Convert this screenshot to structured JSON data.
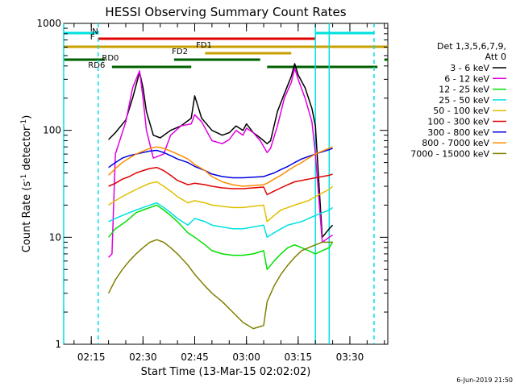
{
  "chart_data": {
    "type": "line",
    "title": "HESSI Observing Summary Count Rates",
    "xlabel": "Start Time (13-Mar-15 02:02:02)",
    "ylabel_main": "Count Rate (s",
    "ylabel_sup1": "-1",
    "ylabel_mid": " detector",
    "ylabel_sup2": "-1",
    "ylabel_end": ")",
    "yscale": "log",
    "ylim": [
      1,
      1000
    ],
    "xlim": [
      "02:07",
      "03:41"
    ],
    "x_ticks": [
      "02:15",
      "02:30",
      "02:45",
      "03:00",
      "03:15",
      "03:30"
    ],
    "y_ticks": [
      "1",
      "10",
      "100",
      "1000"
    ],
    "grid": false,
    "legend_header": [
      "Det 1,3,5,6,7,9,",
      "Att 0"
    ],
    "legend_placement": "right",
    "series": [
      {
        "name": "3 - 6 keV",
        "color": "#000000",
        "x": [
          "02:20",
          "02:22",
          "02:25",
          "02:27",
          "02:29",
          "02:30",
          "02:31",
          "02:33",
          "02:35",
          "02:38",
          "02:41",
          "02:44",
          "02:45",
          "02:47",
          "02:50",
          "02:53",
          "02:55",
          "02:57",
          "02:59",
          "03:00",
          "03:02",
          "03:04",
          "03:06",
          "03:07",
          "03:09",
          "03:11",
          "03:13",
          "03:14",
          "03:15",
          "03:17",
          "03:19",
          "03:20",
          "03:22",
          "03:24",
          "03:25"
        ],
        "y": [
          82,
          95,
          125,
          200,
          350,
          250,
          150,
          90,
          85,
          100,
          110,
          130,
          210,
          130,
          100,
          90,
          95,
          110,
          100,
          115,
          95,
          85,
          75,
          80,
          150,
          220,
          320,
          420,
          330,
          250,
          160,
          110,
          10,
          12,
          13
        ]
      },
      {
        "name": "6 - 12 keV",
        "color": "#e000e0",
        "x": [
          "02:20",
          "02:21",
          "02:22",
          "02:25",
          "02:27",
          "02:29",
          "02:30",
          "02:31",
          "02:33",
          "02:36",
          "02:38",
          "02:41",
          "02:44",
          "02:45",
          "02:47",
          "02:50",
          "02:53",
          "02:55",
          "02:57",
          "02:59",
          "03:00",
          "03:02",
          "03:04",
          "03:06",
          "03:07",
          "03:09",
          "03:11",
          "03:13",
          "03:14",
          "03:15",
          "03:17",
          "03:19",
          "03:20",
          "03:22",
          "03:24",
          "03:25"
        ],
        "y": [
          6.5,
          7,
          60,
          120,
          250,
          360,
          200,
          100,
          55,
          60,
          90,
          110,
          115,
          140,
          120,
          80,
          75,
          82,
          100,
          90,
          105,
          95,
          80,
          62,
          68,
          110,
          200,
          280,
          380,
          300,
          200,
          120,
          60,
          9,
          10,
          10.5
        ]
      },
      {
        "name": "12 - 25 keV",
        "color": "#00e000",
        "x": [
          "02:20",
          "02:22",
          "02:25",
          "02:28",
          "02:30",
          "02:32",
          "02:34",
          "02:36",
          "02:38",
          "02:40",
          "02:43",
          "02:45",
          "02:48",
          "02:50",
          "02:53",
          "02:56",
          "02:59",
          "03:02",
          "03:05",
          "03:06",
          "03:08",
          "03:10",
          "03:12",
          "03:14",
          "03:16",
          "03:18",
          "03:20",
          "03:22",
          "03:24",
          "03:25"
        ],
        "y": [
          10,
          12,
          14,
          17,
          18,
          19,
          20,
          18,
          16,
          14,
          11,
          10,
          8.5,
          7.5,
          7,
          6.8,
          6.8,
          7,
          7.5,
          5,
          6,
          7,
          8,
          8.5,
          8,
          7.5,
          7,
          7.5,
          8,
          9
        ]
      },
      {
        "name": "25 - 50 keV",
        "color": "#00e0e0",
        "x": [
          "02:20",
          "02:22",
          "02:24",
          "02:26",
          "02:28",
          "02:30",
          "02:32",
          "02:34",
          "02:36",
          "02:38",
          "02:40",
          "02:43",
          "02:45",
          "02:48",
          "02:50",
          "02:53",
          "02:56",
          "02:59",
          "03:02",
          "03:05",
          "03:06",
          "03:08",
          "03:10",
          "03:12",
          "03:14",
          "03:16",
          "03:18",
          "03:20",
          "03:22",
          "03:24",
          "03:25"
        ],
        "y": [
          14,
          15,
          16,
          17,
          18,
          19,
          20,
          21,
          19,
          17,
          15,
          13,
          15,
          14,
          13,
          12.5,
          12,
          12,
          12.5,
          13,
          10,
          11,
          12,
          13,
          13.5,
          14,
          15,
          16,
          17,
          18,
          19
        ]
      },
      {
        "name": "50 - 100 keV",
        "color": "#e0c000",
        "x": [
          "02:20",
          "02:22",
          "02:24",
          "02:26",
          "02:28",
          "02:30",
          "02:32",
          "02:34",
          "02:36",
          "02:38",
          "02:40",
          "02:43",
          "02:45",
          "02:48",
          "02:50",
          "02:53",
          "02:56",
          "02:59",
          "03:02",
          "03:05",
          "03:06",
          "03:08",
          "03:10",
          "03:12",
          "03:14",
          "03:16",
          "03:18",
          "03:20",
          "03:22",
          "03:24",
          "03:25"
        ],
        "y": [
          20,
          22,
          24,
          26,
          28,
          30,
          32,
          33,
          30,
          27,
          24,
          21,
          22,
          21,
          20,
          19.5,
          19,
          19,
          19.5,
          20,
          14,
          16,
          18,
          19,
          20,
          21,
          22,
          24,
          26,
          28,
          30
        ]
      },
      {
        "name": "100 - 300 keV",
        "color": "#e00000",
        "x": [
          "02:20",
          "02:22",
          "02:24",
          "02:26",
          "02:28",
          "02:30",
          "02:32",
          "02:34",
          "02:36",
          "02:38",
          "02:40",
          "02:43",
          "02:45",
          "02:48",
          "02:50",
          "02:53",
          "02:56",
          "02:59",
          "03:02",
          "03:05",
          "03:06",
          "03:08",
          "03:10",
          "03:12",
          "03:14",
          "03:16",
          "03:18",
          "03:20",
          "03:22",
          "03:24",
          "03:25"
        ],
        "y": [
          30,
          32,
          35,
          37,
          40,
          42,
          44,
          45,
          42,
          38,
          34,
          31,
          32,
          31,
          30,
          29,
          28.5,
          28.5,
          29,
          29.5,
          25,
          27,
          29,
          31,
          33,
          34,
          35,
          36,
          37,
          38,
          39
        ]
      },
      {
        "name": "300 - 800 keV",
        "color": "#0000e0",
        "x": [
          "02:20",
          "02:22",
          "02:24",
          "02:26",
          "02:28",
          "02:30",
          "02:32",
          "02:34",
          "02:36",
          "02:38",
          "02:40",
          "02:43",
          "02:45",
          "02:48",
          "02:50",
          "02:53",
          "02:56",
          "02:59",
          "03:02",
          "03:05",
          "03:06",
          "03:08",
          "03:10",
          "03:12",
          "03:14",
          "03:16",
          "03:18",
          "03:20",
          "03:22",
          "03:24",
          "03:25"
        ],
        "y": [
          45,
          50,
          55,
          58,
          60,
          62,
          64,
          65,
          62,
          58,
          54,
          50,
          46,
          42,
          39,
          37,
          36,
          36,
          36.5,
          37,
          38,
          40,
          43,
          46,
          50,
          54,
          57,
          60,
          63,
          66,
          68
        ]
      },
      {
        "name": "800 - 7000 keV",
        "color": "#ff8c00",
        "x": [
          "02:20",
          "02:22",
          "02:24",
          "02:26",
          "02:28",
          "02:30",
          "02:32",
          "02:34",
          "02:36",
          "02:38",
          "02:40",
          "02:43",
          "02:45",
          "02:48",
          "02:50",
          "02:53",
          "02:56",
          "02:59",
          "03:02",
          "03:05",
          "03:06",
          "03:08",
          "03:10",
          "03:12",
          "03:14",
          "03:16",
          "03:18",
          "03:20",
          "03:22",
          "03:24",
          "03:25"
        ],
        "y": [
          38,
          44,
          50,
          55,
          60,
          64,
          68,
          70,
          68,
          64,
          60,
          54,
          48,
          42,
          37,
          33,
          31,
          30,
          30.5,
          31,
          32,
          35,
          38,
          42,
          46,
          50,
          55,
          60,
          64,
          68,
          70
        ]
      },
      {
        "name": "7000 - 15000 keV",
        "color": "#808000",
        "x": [
          "02:20",
          "02:22",
          "02:24",
          "02:26",
          "02:28",
          "02:30",
          "02:32",
          "02:34",
          "02:36",
          "02:38",
          "02:40",
          "02:43",
          "02:45",
          "02:48",
          "02:50",
          "02:53",
          "02:56",
          "02:59",
          "03:02",
          "03:05",
          "03:06",
          "03:08",
          "03:10",
          "03:12",
          "03:14",
          "03:16",
          "03:18",
          "03:20",
          "03:22",
          "03:24",
          "03:25"
        ],
        "y": [
          3,
          4,
          5,
          6,
          7,
          8,
          9,
          9.5,
          9,
          8,
          7,
          5.5,
          4.5,
          3.5,
          3,
          2.5,
          2,
          1.6,
          1.4,
          1.5,
          2.5,
          3.5,
          4.5,
          5.5,
          6.5,
          7.5,
          8,
          8.5,
          9,
          9,
          9
        ]
      }
    ],
    "flag_bars": [
      {
        "label": "N",
        "color": "#00e0e0",
        "label_at": "02:17",
        "segments": [
          [
            "02:07",
            "02:17"
          ],
          [
            "03:20",
            "03:37"
          ]
        ]
      },
      {
        "label": "F",
        "color": "#e00000",
        "label_at": "02:16",
        "segments": [
          [
            "02:17",
            "03:20"
          ]
        ]
      },
      {
        "label": "FD1",
        "color": "#c8a000",
        "label_at": "02:50",
        "segments": [
          [
            "02:07",
            "03:41"
          ]
        ]
      },
      {
        "label": "FD2",
        "color": "#c8a000",
        "label_at": "02:43",
        "segments": [
          [
            "02:48",
            "03:13"
          ]
        ]
      },
      {
        "label": "RD0",
        "color": "#006000",
        "label_at": "02:23",
        "segments": [
          [
            "02:07",
            "02:19"
          ],
          [
            "02:39",
            "03:04"
          ],
          [
            "03:40",
            "03:41"
          ]
        ]
      },
      {
        "label": "RD6",
        "color": "#006000",
        "label_at": "02:19",
        "segments": [
          [
            "02:21",
            "02:44"
          ],
          [
            "03:06",
            "03:38"
          ]
        ]
      }
    ],
    "vlines": [
      {
        "x": "02:07",
        "color": "#00e0e0",
        "dashed": false
      },
      {
        "x": "02:17",
        "color": "#00e0e0",
        "dashed": true
      },
      {
        "x": "03:20",
        "color": "#00e0e0",
        "dashed": false
      },
      {
        "x": "03:24",
        "color": "#00e0e0",
        "dashed": false
      },
      {
        "x": "03:37",
        "color": "#00e0e0",
        "dashed": true
      }
    ],
    "footer_date": "6-Jun-2019 21:50"
  }
}
